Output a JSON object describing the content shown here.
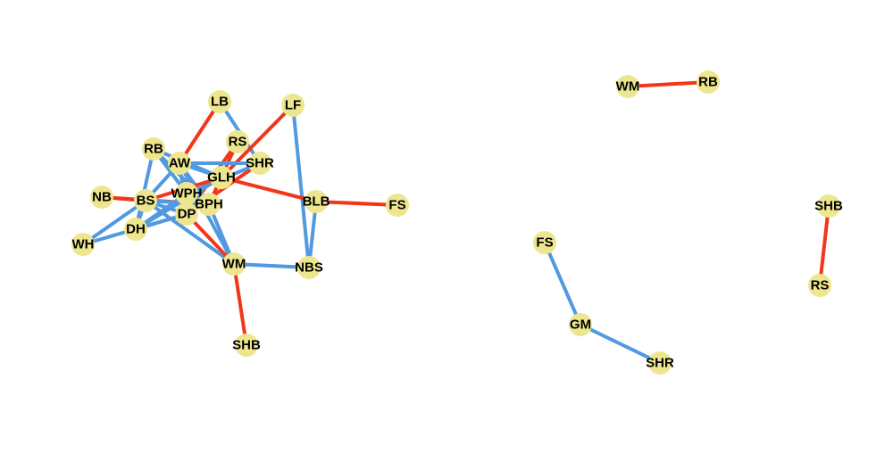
{
  "colors": {
    "background": "#ffffff",
    "node": "#ede68f",
    "edge_blue": "#5199e0",
    "edge_red": "#f2361a",
    "label": "#000000"
  },
  "components": [
    {
      "id": "main-cluster",
      "nodes": [
        {
          "id": "LB",
          "label": "LB"
        },
        {
          "id": "LF",
          "label": "LF"
        },
        {
          "id": "RB",
          "label": "RB"
        },
        {
          "id": "RS",
          "label": "RS"
        },
        {
          "id": "AW",
          "label": "AW"
        },
        {
          "id": "SHR",
          "label": "SHR"
        },
        {
          "id": "GLH",
          "label": "GLH"
        },
        {
          "id": "NB",
          "label": "NB"
        },
        {
          "id": "WPH",
          "label": "WPH"
        },
        {
          "id": "BS",
          "label": "BS"
        },
        {
          "id": "BPH",
          "label": "BPH"
        },
        {
          "id": "BLB",
          "label": "BLB"
        },
        {
          "id": "FS",
          "label": "FS"
        },
        {
          "id": "DP",
          "label": "DP"
        },
        {
          "id": "DH",
          "label": "DH"
        },
        {
          "id": "WH",
          "label": "WH"
        },
        {
          "id": "WM",
          "label": "WM"
        },
        {
          "id": "NBS",
          "label": "NBS"
        },
        {
          "id": "SHB",
          "label": "SHB"
        }
      ],
      "edges": [
        {
          "source": "LB",
          "target": "AW",
          "type": "red"
        },
        {
          "source": "LB",
          "target": "SHR",
          "type": "blue"
        },
        {
          "source": "LF",
          "target": "GLH",
          "type": "red"
        },
        {
          "source": "LF",
          "target": "NBS",
          "type": "blue"
        },
        {
          "source": "RS",
          "target": "BPH",
          "type": "red"
        },
        {
          "source": "RS",
          "target": "DP",
          "type": "red"
        },
        {
          "source": "RB",
          "target": "DH",
          "type": "blue"
        },
        {
          "source": "RB",
          "target": "BPH",
          "type": "blue"
        },
        {
          "source": "RB",
          "target": "GLH",
          "type": "blue"
        },
        {
          "source": "RB",
          "target": "WPH",
          "type": "blue"
        },
        {
          "source": "AW",
          "target": "BS",
          "type": "blue"
        },
        {
          "source": "AW",
          "target": "DP",
          "type": "blue"
        },
        {
          "source": "AW",
          "target": "GLH",
          "type": "blue"
        },
        {
          "source": "AW",
          "target": "SHR",
          "type": "blue"
        },
        {
          "source": "AW",
          "target": "BPH",
          "type": "blue"
        },
        {
          "source": "AW",
          "target": "WM",
          "type": "blue"
        },
        {
          "source": "SHR",
          "target": "DP",
          "type": "red"
        },
        {
          "source": "SHR",
          "target": "WPH",
          "type": "blue"
        },
        {
          "source": "GLH",
          "target": "BLB",
          "type": "red"
        },
        {
          "source": "GLH",
          "target": "DH",
          "type": "blue"
        },
        {
          "source": "NB",
          "target": "BS",
          "type": "red"
        },
        {
          "source": "NB",
          "target": "BPH",
          "type": "red"
        },
        {
          "source": "BS",
          "target": "GLH",
          "type": "red"
        },
        {
          "source": "BS",
          "target": "DP",
          "type": "blue"
        },
        {
          "source": "BS",
          "target": "DH",
          "type": "blue"
        },
        {
          "source": "BS",
          "target": "WH",
          "type": "blue"
        },
        {
          "source": "BS",
          "target": "BPH",
          "type": "blue"
        },
        {
          "source": "BS",
          "target": "WM",
          "type": "blue"
        },
        {
          "source": "DP",
          "target": "WM",
          "type": "red"
        },
        {
          "source": "DP",
          "target": "WH",
          "type": "blue"
        },
        {
          "source": "DP",
          "target": "DH",
          "type": "blue"
        },
        {
          "source": "BPH",
          "target": "WM",
          "type": "blue"
        },
        {
          "source": "WPH",
          "target": "DH",
          "type": "blue"
        },
        {
          "source": "BLB",
          "target": "FS",
          "type": "red"
        },
        {
          "source": "BLB",
          "target": "NBS",
          "type": "blue"
        },
        {
          "source": "WM",
          "target": "NBS",
          "type": "blue"
        },
        {
          "source": "WM",
          "target": "SHB",
          "type": "red"
        }
      ]
    },
    {
      "id": "wm-rb-pair",
      "nodes": [
        {
          "id": "WM2",
          "label": "WM"
        },
        {
          "id": "RB2",
          "label": "RB"
        }
      ],
      "edges": [
        {
          "source": "WM2",
          "target": "RB2",
          "type": "red"
        }
      ]
    },
    {
      "id": "shb-rs-pair",
      "nodes": [
        {
          "id": "SHB2",
          "label": "SHB"
        },
        {
          "id": "RS2",
          "label": "RS"
        }
      ],
      "edges": [
        {
          "source": "SHB2",
          "target": "RS2",
          "type": "red"
        }
      ]
    },
    {
      "id": "fs-gm-shr-chain",
      "nodes": [
        {
          "id": "FS2",
          "label": "FS"
        },
        {
          "id": "GM",
          "label": "GM"
        },
        {
          "id": "SHR2",
          "label": "SHR"
        }
      ],
      "edges": [
        {
          "source": "FS2",
          "target": "GM",
          "type": "blue"
        },
        {
          "source": "GM",
          "target": "SHR2",
          "type": "blue"
        }
      ]
    }
  ]
}
